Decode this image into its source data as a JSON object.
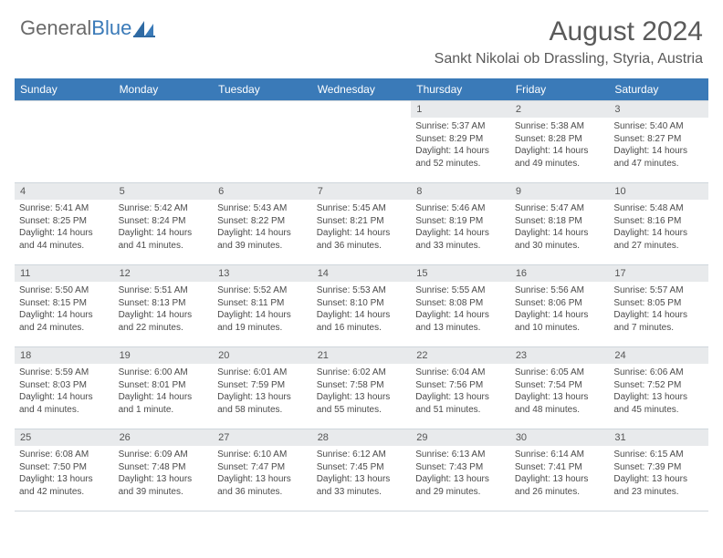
{
  "brand": {
    "general": "General",
    "blue": "Blue"
  },
  "title": "August 2024",
  "location": "Sankt Nikolai ob Drassling, Styria, Austria",
  "colors": {
    "header_band": "#3a7ab8",
    "daynum_bg": "#e8eaec",
    "text": "#4a4a4a",
    "rule": "#cfd6dc"
  },
  "weekdays": [
    "Sunday",
    "Monday",
    "Tuesday",
    "Wednesday",
    "Thursday",
    "Friday",
    "Saturday"
  ],
  "first_weekday_index": 4,
  "days": [
    {
      "n": 1,
      "sunrise": "5:37 AM",
      "sunset": "8:29 PM",
      "daylight": "14 hours and 52 minutes."
    },
    {
      "n": 2,
      "sunrise": "5:38 AM",
      "sunset": "8:28 PM",
      "daylight": "14 hours and 49 minutes."
    },
    {
      "n": 3,
      "sunrise": "5:40 AM",
      "sunset": "8:27 PM",
      "daylight": "14 hours and 47 minutes."
    },
    {
      "n": 4,
      "sunrise": "5:41 AM",
      "sunset": "8:25 PM",
      "daylight": "14 hours and 44 minutes."
    },
    {
      "n": 5,
      "sunrise": "5:42 AM",
      "sunset": "8:24 PM",
      "daylight": "14 hours and 41 minutes."
    },
    {
      "n": 6,
      "sunrise": "5:43 AM",
      "sunset": "8:22 PM",
      "daylight": "14 hours and 39 minutes."
    },
    {
      "n": 7,
      "sunrise": "5:45 AM",
      "sunset": "8:21 PM",
      "daylight": "14 hours and 36 minutes."
    },
    {
      "n": 8,
      "sunrise": "5:46 AM",
      "sunset": "8:19 PM",
      "daylight": "14 hours and 33 minutes."
    },
    {
      "n": 9,
      "sunrise": "5:47 AM",
      "sunset": "8:18 PM",
      "daylight": "14 hours and 30 minutes."
    },
    {
      "n": 10,
      "sunrise": "5:48 AM",
      "sunset": "8:16 PM",
      "daylight": "14 hours and 27 minutes."
    },
    {
      "n": 11,
      "sunrise": "5:50 AM",
      "sunset": "8:15 PM",
      "daylight": "14 hours and 24 minutes."
    },
    {
      "n": 12,
      "sunrise": "5:51 AM",
      "sunset": "8:13 PM",
      "daylight": "14 hours and 22 minutes."
    },
    {
      "n": 13,
      "sunrise": "5:52 AM",
      "sunset": "8:11 PM",
      "daylight": "14 hours and 19 minutes."
    },
    {
      "n": 14,
      "sunrise": "5:53 AM",
      "sunset": "8:10 PM",
      "daylight": "14 hours and 16 minutes."
    },
    {
      "n": 15,
      "sunrise": "5:55 AM",
      "sunset": "8:08 PM",
      "daylight": "14 hours and 13 minutes."
    },
    {
      "n": 16,
      "sunrise": "5:56 AM",
      "sunset": "8:06 PM",
      "daylight": "14 hours and 10 minutes."
    },
    {
      "n": 17,
      "sunrise": "5:57 AM",
      "sunset": "8:05 PM",
      "daylight": "14 hours and 7 minutes."
    },
    {
      "n": 18,
      "sunrise": "5:59 AM",
      "sunset": "8:03 PM",
      "daylight": "14 hours and 4 minutes."
    },
    {
      "n": 19,
      "sunrise": "6:00 AM",
      "sunset": "8:01 PM",
      "daylight": "14 hours and 1 minute."
    },
    {
      "n": 20,
      "sunrise": "6:01 AM",
      "sunset": "7:59 PM",
      "daylight": "13 hours and 58 minutes."
    },
    {
      "n": 21,
      "sunrise": "6:02 AM",
      "sunset": "7:58 PM",
      "daylight": "13 hours and 55 minutes."
    },
    {
      "n": 22,
      "sunrise": "6:04 AM",
      "sunset": "7:56 PM",
      "daylight": "13 hours and 51 minutes."
    },
    {
      "n": 23,
      "sunrise": "6:05 AM",
      "sunset": "7:54 PM",
      "daylight": "13 hours and 48 minutes."
    },
    {
      "n": 24,
      "sunrise": "6:06 AM",
      "sunset": "7:52 PM",
      "daylight": "13 hours and 45 minutes."
    },
    {
      "n": 25,
      "sunrise": "6:08 AM",
      "sunset": "7:50 PM",
      "daylight": "13 hours and 42 minutes."
    },
    {
      "n": 26,
      "sunrise": "6:09 AM",
      "sunset": "7:48 PM",
      "daylight": "13 hours and 39 minutes."
    },
    {
      "n": 27,
      "sunrise": "6:10 AM",
      "sunset": "7:47 PM",
      "daylight": "13 hours and 36 minutes."
    },
    {
      "n": 28,
      "sunrise": "6:12 AM",
      "sunset": "7:45 PM",
      "daylight": "13 hours and 33 minutes."
    },
    {
      "n": 29,
      "sunrise": "6:13 AM",
      "sunset": "7:43 PM",
      "daylight": "13 hours and 29 minutes."
    },
    {
      "n": 30,
      "sunrise": "6:14 AM",
      "sunset": "7:41 PM",
      "daylight": "13 hours and 26 minutes."
    },
    {
      "n": 31,
      "sunrise": "6:15 AM",
      "sunset": "7:39 PM",
      "daylight": "13 hours and 23 minutes."
    }
  ],
  "labels": {
    "sunrise": "Sunrise:",
    "sunset": "Sunset:",
    "daylight": "Daylight:"
  }
}
